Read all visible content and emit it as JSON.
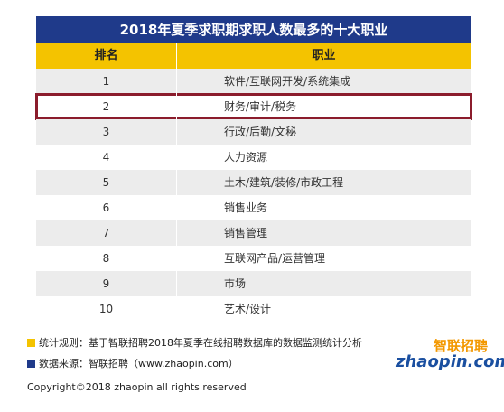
{
  "header": {
    "title": "2018年夏季求职期求职人数最多的十大职业"
  },
  "table": {
    "columns": [
      "排名",
      "职业"
    ],
    "rows": [
      [
        "1",
        "软件/互联网开发/系统集成"
      ],
      [
        "2",
        "财务/审计/税务"
      ],
      [
        "3",
        "行政/后勤/文秘"
      ],
      [
        "4",
        "人力资源"
      ],
      [
        "5",
        "土木/建筑/装修/市政工程"
      ],
      [
        "6",
        "销售业务"
      ],
      [
        "7",
        "销售管理"
      ],
      [
        "8",
        "互联网产品/运营管理"
      ],
      [
        "9",
        "市场"
      ],
      [
        "10",
        "艺术/设计"
      ]
    ]
  },
  "notes": [
    "统计规则：基于智联招聘2018年夏季在线招聘数据库的数据监测统计分析",
    "数据来源：智联招聘（www.zhaopin.com）"
  ],
  "logo": {
    "name": "智联招聘",
    "domain": "zhaopin.com"
  },
  "footer": {
    "copyright": "Copyright©2018 zhaopin all rights reserved"
  }
}
